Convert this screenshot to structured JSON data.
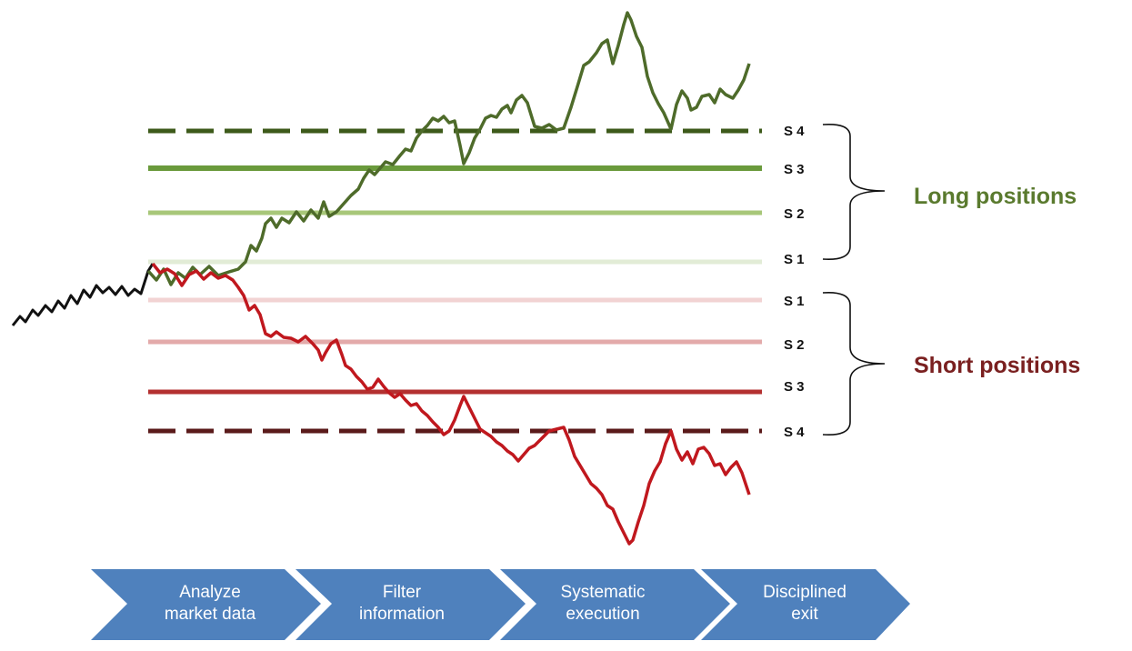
{
  "long_group": {
    "label": "Long positions",
    "color": "#5a7a2e",
    "levels": [
      {
        "name": "S 4",
        "style": "dashed",
        "color": "#3d5a1a"
      },
      {
        "name": "S 3",
        "style": "solid",
        "color": "#6a9a3c"
      },
      {
        "name": "S 2",
        "style": "solid",
        "color": "#a8c779"
      },
      {
        "name": "S 1",
        "style": "solid",
        "color": "#e2ecd6"
      }
    ]
  },
  "short_group": {
    "label": "Short positions",
    "color": "#7a2020",
    "levels": [
      {
        "name": "S 1",
        "style": "solid",
        "color": "#f2d3d3"
      },
      {
        "name": "S 2",
        "style": "solid",
        "color": "#e3aaaa"
      },
      {
        "name": "S 3",
        "style": "solid",
        "color": "#b43030"
      },
      {
        "name": "S 4",
        "style": "dashed",
        "color": "#5a1a1a"
      }
    ]
  },
  "price_lines": [
    {
      "id": "history",
      "color": "#111111"
    },
    {
      "id": "long-path",
      "color": "#4e6b2a"
    },
    {
      "id": "short-path",
      "color": "#c0181e"
    }
  ],
  "process_steps": [
    {
      "label": "Analyze\nmarket data"
    },
    {
      "label": "Filter\ninformation"
    },
    {
      "label": "Systematic\nexecution"
    },
    {
      "label": "Disciplined\nexit"
    }
  ],
  "chevron_color": "#4f81bd"
}
